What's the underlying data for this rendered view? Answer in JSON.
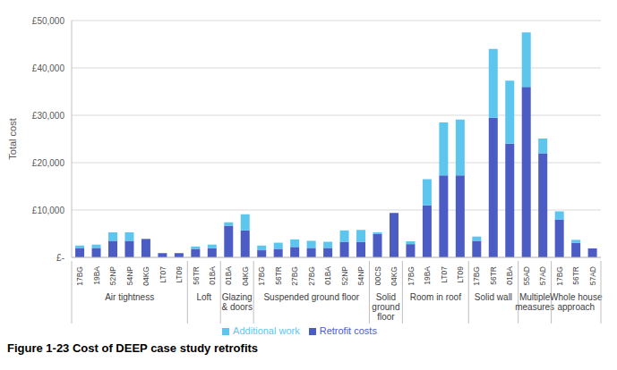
{
  "chart_data": {
    "type": "bar",
    "title": "Figure 1-23 Cost of DEEP case study retrofits",
    "y_label": "Total cost",
    "categories": [
      "17BG",
      "19BA",
      "52NP",
      "54NP",
      "04KG",
      "LT07",
      "LT09",
      "56TR",
      "01BA",
      "01BA",
      "04KG",
      "17BG",
      "56TR",
      "27BG",
      "27BG",
      "01BA",
      "52NP",
      "54NP",
      "00CS",
      "04KG",
      "17BG",
      "19BA",
      "LT07",
      "LT09",
      "17BG",
      "56TR",
      "01BA",
      "55AD",
      "57AD",
      "17BG",
      "56TR",
      "57AD"
    ],
    "category_groups": [
      {
        "label": "Air tightness",
        "size": 7
      },
      {
        "label": "Loft",
        "size": 2
      },
      {
        "label": "Glazing & doors",
        "size": 2
      },
      {
        "label": "Suspended ground floor",
        "size": 7
      },
      {
        "label": "Solid ground floor",
        "size": 2
      },
      {
        "label": "Room in roof",
        "size": 4
      },
      {
        "label": "Solid wall",
        "size": 3
      },
      {
        "label": "Multiple measures",
        "size": 2
      },
      {
        "label": "Whole house approach",
        "size": 3
      }
    ],
    "series": [
      {
        "name": "Retrofit costs",
        "color": "#4b5cc4",
        "values": [
          2000,
          2000,
          3500,
          3500,
          3900,
          900,
          900,
          1800,
          1900,
          6700,
          5700,
          1500,
          1800,
          2200,
          2000,
          2000,
          3300,
          3300,
          5000,
          9400,
          2800,
          11000,
          17300,
          17300,
          3500,
          29500,
          24000,
          36000,
          22000,
          8000,
          3100,
          1900
        ]
      },
      {
        "name": "Additional work",
        "color": "#5cc6ee",
        "values": [
          500,
          700,
          1800,
          1800,
          0,
          0,
          0,
          500,
          800,
          700,
          3400,
          1000,
          1300,
          1600,
          1500,
          1300,
          2400,
          2500,
          300,
          0,
          600,
          5500,
          11200,
          11800,
          900,
          14500,
          13300,
          11500,
          3100,
          1700,
          600,
          0
        ]
      }
    ],
    "ylim": [
      0,
      50000
    ],
    "yticks": [
      {
        "value": 0,
        "label": "£-"
      },
      {
        "value": 10000,
        "label": "£10,000"
      },
      {
        "value": 20000,
        "label": "£20,000"
      },
      {
        "value": 30000,
        "label": "£30,000"
      },
      {
        "value": 40000,
        "label": "£40,000"
      },
      {
        "value": 50000,
        "label": "£50,000"
      }
    ],
    "grid": true,
    "stacked": true,
    "legend": "bottom"
  }
}
